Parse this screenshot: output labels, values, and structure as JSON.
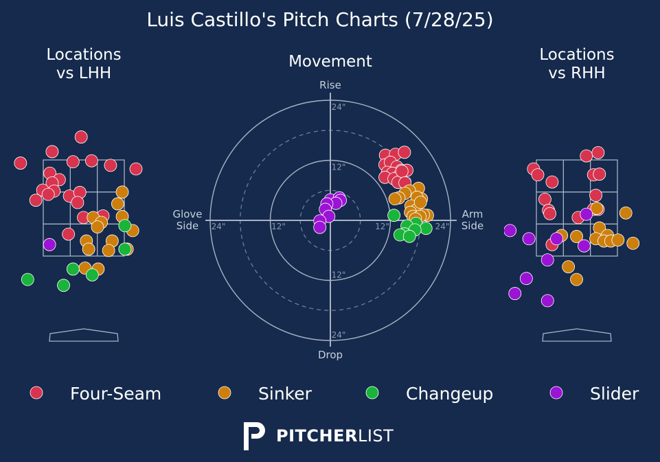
{
  "chart_data": {
    "type": "scatter",
    "title": "Luis Castillo's Pitch Charts (7/28/25)",
    "colors": {
      "background": "#152a4c",
      "Four-Seam": "#d8344f",
      "Sinker": "#cd7f0d",
      "Changeup": "#19b43a",
      "Slider": "#9b13d4"
    },
    "legend": {
      "placement": "bottom",
      "entries": [
        "Four-Seam",
        "Sinker",
        "Changeup",
        "Slider"
      ]
    },
    "panels": {
      "lhh": {
        "title_line1": "Locations",
        "title_line2": "vs LHH",
        "pitches": [
          {
            "t": "Four-Seam",
            "x": -1.94,
            "y": 4.22
          },
          {
            "t": "Four-Seam",
            "x": -0.97,
            "y": 4.57
          },
          {
            "t": "Four-Seam",
            "x": -0.08,
            "y": 5.02
          },
          {
            "t": "Four-Seam",
            "x": -0.33,
            "y": 4.26
          },
          {
            "t": "Four-Seam",
            "x": 0.24,
            "y": 4.29
          },
          {
            "t": "Four-Seam",
            "x": 0.82,
            "y": 4.15
          },
          {
            "t": "Four-Seam",
            "x": 1.6,
            "y": 4.04
          },
          {
            "t": "Four-Seam",
            "x": -1.04,
            "y": 3.91
          },
          {
            "t": "Four-Seam",
            "x": -0.75,
            "y": 3.71
          },
          {
            "t": "Four-Seam",
            "x": -0.97,
            "y": 3.61
          },
          {
            "t": "Four-Seam",
            "x": -1.26,
            "y": 3.39
          },
          {
            "t": "Four-Seam",
            "x": -0.91,
            "y": 3.36
          },
          {
            "t": "Four-Seam",
            "x": -1.09,
            "y": 3.26
          },
          {
            "t": "Four-Seam",
            "x": -1.47,
            "y": 3.08
          },
          {
            "t": "Four-Seam",
            "x": -0.44,
            "y": 3.21
          },
          {
            "t": "Four-Seam",
            "x": -0.12,
            "y": 3.32
          },
          {
            "t": "Four-Seam",
            "x": -0.19,
            "y": 3.01
          },
          {
            "t": "Four-Seam",
            "x": -0.01,
            "y": 2.55
          },
          {
            "t": "Four-Seam",
            "x": 0.59,
            "y": 2.6
          },
          {
            "t": "Four-Seam",
            "x": -0.47,
            "y": 2.04
          },
          {
            "t": "Sinker",
            "x": 1.18,
            "y": 3.33
          },
          {
            "t": "Sinker",
            "x": 1.04,
            "y": 2.97
          },
          {
            "t": "Sinker",
            "x": 1.18,
            "y": 2.58
          },
          {
            "t": "Sinker",
            "x": 0.29,
            "y": 2.55
          },
          {
            "t": "Sinker",
            "x": 0.54,
            "y": 2.4
          },
          {
            "t": "Sinker",
            "x": 0.42,
            "y": 2.26
          },
          {
            "t": "Sinker",
            "x": 1.5,
            "y": 2.15
          },
          {
            "t": "Sinker",
            "x": 0.08,
            "y": 1.83
          },
          {
            "t": "Sinker",
            "x": 0.87,
            "y": 1.83
          },
          {
            "t": "Sinker",
            "x": 0.15,
            "y": 1.58
          },
          {
            "t": "Sinker",
            "x": 0.76,
            "y": 1.54
          },
          {
            "t": "Sinker",
            "x": 1.33,
            "y": 1.58
          },
          {
            "t": "Sinker",
            "x": 0.04,
            "y": 1.0
          },
          {
            "t": "Sinker",
            "x": 0.44,
            "y": 0.97
          },
          {
            "t": "Changeup",
            "x": 1.26,
            "y": 2.3
          },
          {
            "t": "Changeup",
            "x": 1.26,
            "y": 1.58
          },
          {
            "t": "Changeup",
            "x": -1.72,
            "y": 0.65
          },
          {
            "t": "Changeup",
            "x": -0.33,
            "y": 0.97
          },
          {
            "t": "Changeup",
            "x": -0.62,
            "y": 0.47
          },
          {
            "t": "Changeup",
            "x": 0.26,
            "y": 0.79
          },
          {
            "t": "Slider",
            "x": -1.05,
            "y": 1.72
          }
        ]
      },
      "rhh": {
        "title_line1": "Locations",
        "title_line2": "vs RHH",
        "pitches": [
          {
            "t": "Four-Seam",
            "x": -1.33,
            "y": 4.04
          },
          {
            "t": "Four-Seam",
            "x": -1.2,
            "y": 3.86
          },
          {
            "t": "Four-Seam",
            "x": 0.29,
            "y": 4.44
          },
          {
            "t": "Four-Seam",
            "x": 0.65,
            "y": 4.54
          },
          {
            "t": "Four-Seam",
            "x": 0.51,
            "y": 3.86
          },
          {
            "t": "Four-Seam",
            "x": 0.69,
            "y": 3.88
          },
          {
            "t": "Four-Seam",
            "x": -0.76,
            "y": 3.64
          },
          {
            "t": "Four-Seam",
            "x": 0.58,
            "y": 3.23
          },
          {
            "t": "Four-Seam",
            "x": -0.98,
            "y": 3.11
          },
          {
            "t": "Four-Seam",
            "x": -0.87,
            "y": 2.77
          },
          {
            "t": "Four-Seam",
            "x": -0.83,
            "y": 2.67
          },
          {
            "t": "Four-Seam",
            "x": 0.51,
            "y": 2.8
          },
          {
            "t": "Four-Seam",
            "x": 0.65,
            "y": 2.8
          },
          {
            "t": "Four-Seam",
            "x": 0.04,
            "y": 2.55
          },
          {
            "t": "Four-Seam",
            "x": -0.76,
            "y": 1.72
          },
          {
            "t": "Sinker",
            "x": 0.61,
            "y": 2.83
          },
          {
            "t": "Sinker",
            "x": 1.5,
            "y": 2.69
          },
          {
            "t": "Sinker",
            "x": 0.69,
            "y": 2.23
          },
          {
            "t": "Sinker",
            "x": -0.47,
            "y": 2.0
          },
          {
            "t": "Sinker",
            "x": -0.01,
            "y": 1.97
          },
          {
            "t": "Sinker",
            "x": 0.94,
            "y": 2.0
          },
          {
            "t": "Sinker",
            "x": 0.58,
            "y": 1.9
          },
          {
            "t": "Sinker",
            "x": 0.83,
            "y": 1.83
          },
          {
            "t": "Sinker",
            "x": 1.04,
            "y": 1.83
          },
          {
            "t": "Sinker",
            "x": 1.26,
            "y": 1.86
          },
          {
            "t": "Sinker",
            "x": 1.72,
            "y": 1.76
          },
          {
            "t": "Sinker",
            "x": -0.26,
            "y": 1.04
          },
          {
            "t": "Sinker",
            "x": -0.01,
            "y": 0.65
          },
          {
            "t": "Slider",
            "x": 2.99,
            "y": 2.83
          },
          {
            "t": "Slider",
            "x": 0.29,
            "y": 2.65
          },
          {
            "t": "Slider",
            "x": -2.05,
            "y": 2.15
          },
          {
            "t": "Slider",
            "x": -1.47,
            "y": 1.9
          },
          {
            "t": "Slider",
            "x": -0.62,
            "y": 1.9
          },
          {
            "t": "Slider",
            "x": 0.22,
            "y": 1.68
          },
          {
            "t": "Slider",
            "x": -0.9,
            "y": 1.25
          },
          {
            "t": "Slider",
            "x": -1.55,
            "y": 0.68
          },
          {
            "t": "Slider",
            "x": -1.9,
            "y": 0.22
          },
          {
            "t": "Slider",
            "x": -0.9,
            "y": 0.0
          }
        ]
      },
      "movement": {
        "title": "Movement",
        "label_top": "Rise",
        "label_bottom": "Drop",
        "label_left_1": "Glove",
        "label_left_2": "Side",
        "label_right_1": "Arm",
        "label_right_2": "Side",
        "ring_ticks": [
          {
            "text": "24\"",
            "pos": "top24"
          },
          {
            "text": "12\"",
            "pos": "top12"
          },
          {
            "text": "12\"",
            "pos": "bottom12"
          },
          {
            "text": "24\"",
            "pos": "bottom24"
          },
          {
            "text": "24\"",
            "pos": "left24"
          },
          {
            "text": "12\"",
            "pos": "left12"
          },
          {
            "text": "12\"",
            "pos": "right12"
          },
          {
            "text": "24\"",
            "pos": "right24"
          }
        ],
        "radius_max_in": 24,
        "pitches": [
          {
            "t": "Four-Seam",
            "x": 11.0,
            "y": 13.0
          },
          {
            "t": "Four-Seam",
            "x": 13.0,
            "y": 13.2
          },
          {
            "t": "Four-Seam",
            "x": 14.8,
            "y": 13.6
          },
          {
            "t": "Four-Seam",
            "x": 10.9,
            "y": 11.1
          },
          {
            "t": "Four-Seam",
            "x": 12.0,
            "y": 11.6
          },
          {
            "t": "Four-Seam",
            "x": 13.3,
            "y": 10.7
          },
          {
            "t": "Four-Seam",
            "x": 14.2,
            "y": 10.0
          },
          {
            "t": "Four-Seam",
            "x": 15.3,
            "y": 10.0
          },
          {
            "t": "Four-Seam",
            "x": 11.4,
            "y": 9.6
          },
          {
            "t": "Four-Seam",
            "x": 12.4,
            "y": 9.4
          },
          {
            "t": "Four-Seam",
            "x": 13.7,
            "y": 8.9
          },
          {
            "t": "Four-Seam",
            "x": 10.9,
            "y": 8.6
          },
          {
            "t": "Four-Seam",
            "x": 12.7,
            "y": 8.3
          },
          {
            "t": "Four-Seam",
            "x": 13.5,
            "y": 7.6
          },
          {
            "t": "Four-Seam",
            "x": 14.3,
            "y": 9.8
          },
          {
            "t": "Four-Seam",
            "x": 14.9,
            "y": 7.5
          },
          {
            "t": "Sinker",
            "x": 17.6,
            "y": 6.4
          },
          {
            "t": "Sinker",
            "x": 15.8,
            "y": 5.9
          },
          {
            "t": "Sinker",
            "x": 14.9,
            "y": 5.4
          },
          {
            "t": "Sinker",
            "x": 13.7,
            "y": 4.5
          },
          {
            "t": "Sinker",
            "x": 12.9,
            "y": 4.3
          },
          {
            "t": "Sinker",
            "x": 18.2,
            "y": 4.3
          },
          {
            "t": "Sinker",
            "x": 17.3,
            "y": 4.6
          },
          {
            "t": "Sinker",
            "x": 16.1,
            "y": 2.9
          },
          {
            "t": "Sinker",
            "x": 17.1,
            "y": 2.0
          },
          {
            "t": "Sinker",
            "x": 19.4,
            "y": 1.0
          },
          {
            "t": "Sinker",
            "x": 16.0,
            "y": 1.6
          },
          {
            "t": "Sinker",
            "x": 18.6,
            "y": 1.1
          },
          {
            "t": "Sinker",
            "x": 16.5,
            "y": 0.8
          },
          {
            "t": "Sinker",
            "x": 17.9,
            "y": 0.8
          },
          {
            "t": "Sinker",
            "x": 18.0,
            "y": 3.6
          },
          {
            "t": "Sinker",
            "x": 17.0,
            "y": 0.3
          },
          {
            "t": "Changeup",
            "x": 12.7,
            "y": 1.0
          },
          {
            "t": "Changeup",
            "x": 17.1,
            "y": -0.6
          },
          {
            "t": "Changeup",
            "x": 15.3,
            "y": -1.1
          },
          {
            "t": "Changeup",
            "x": 19.1,
            "y": -1.6
          },
          {
            "t": "Changeup",
            "x": 16.9,
            "y": -1.9
          },
          {
            "t": "Changeup",
            "x": 14.8,
            "y": -2.7
          },
          {
            "t": "Changeup",
            "x": 13.9,
            "y": -2.9
          },
          {
            "t": "Changeup",
            "x": 15.8,
            "y": -3.2
          },
          {
            "t": "Slider",
            "x": 0.0,
            "y": 4.1
          },
          {
            "t": "Slider",
            "x": 1.8,
            "y": 4.5
          },
          {
            "t": "Slider",
            "x": 2.0,
            "y": 4.0
          },
          {
            "t": "Slider",
            "x": 1.1,
            "y": 3.4
          },
          {
            "t": "Slider",
            "x": -0.7,
            "y": 3.3
          },
          {
            "t": "Slider",
            "x": -1.0,
            "y": 2.2
          },
          {
            "t": "Slider",
            "x": -0.3,
            "y": 0.8
          },
          {
            "t": "Slider",
            "x": -2.1,
            "y": -0.1
          },
          {
            "t": "Slider",
            "x": -2.1,
            "y": -1.4
          }
        ]
      }
    }
  },
  "brand": {
    "logo_word_bold": "PITCHER",
    "logo_word_light": "LIST"
  }
}
